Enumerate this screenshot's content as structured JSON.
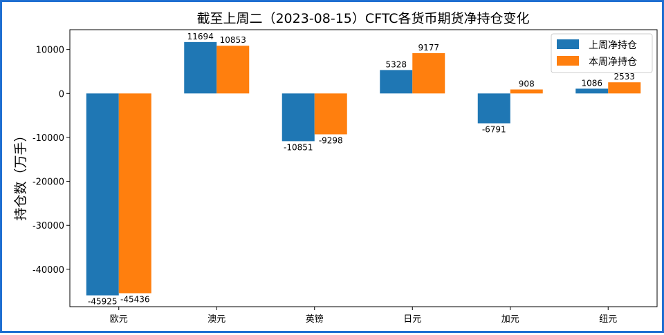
{
  "chart_data": {
    "type": "bar",
    "title": "截至上周二（2023-08-15）CFTC各货币期货净持仓变化",
    "xlabel": "",
    "ylabel": "持仓数（万手）",
    "categories": [
      "欧元",
      "澳元",
      "英镑",
      "日元",
      "加元",
      "纽元"
    ],
    "series": [
      {
        "name": "上周净持仓",
        "color": "#1f77b4",
        "values": [
          -45925,
          11694,
          -10851,
          5328,
          -6791,
          1086
        ]
      },
      {
        "name": "本周净持仓",
        "color": "#ff7f0e",
        "values": [
          -45436,
          10853,
          -9298,
          9177,
          908,
          2533
        ]
      }
    ],
    "yticks": [
      10000,
      0,
      -10000,
      -20000,
      -30000,
      -40000
    ],
    "ylim": [
      -48500,
      14500
    ],
    "grid": false,
    "legend": "top-right"
  }
}
